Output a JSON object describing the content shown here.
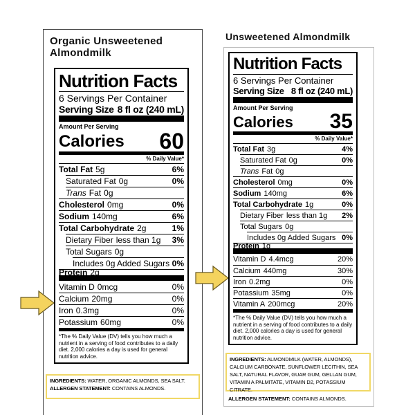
{
  "left": {
    "product": "Organic Unsweetened Almondmilk",
    "label": {
      "title": "Nutrition Facts",
      "servings": "6 Servings Per Container",
      "serving_size_label": "Serving Size",
      "serving_size": "8 fl oz (240 mL)",
      "amount_per_serving": "Amount Per Serving",
      "calories_label": "Calories",
      "calories": 60,
      "dv_header": "% Daily Value*",
      "nutrients": [
        {
          "name": "Total Fat",
          "amount": "5g",
          "dv": "6%",
          "bold": true,
          "indent": 0
        },
        {
          "name": "Saturated Fat",
          "amount": "0g",
          "dv": "0%",
          "bold": false,
          "indent": 1
        },
        {
          "name_italic": "Trans",
          "name": "Fat",
          "amount": "0g",
          "bold": false,
          "indent": 1
        },
        {
          "name": "Cholesterol",
          "amount": "0mg",
          "dv": "0%",
          "bold": true,
          "indent": 0
        },
        {
          "name": "Sodium",
          "amount": "140mg",
          "dv": "6%",
          "bold": true,
          "indent": 0
        },
        {
          "name": "Total Carbohydrate",
          "amount": "2g",
          "dv": "1%",
          "bold": true,
          "indent": 0
        },
        {
          "name": "Dietary Fiber",
          "amount": "less than 1g",
          "dv": "3%",
          "bold": false,
          "indent": 1
        },
        {
          "name": "Total Sugars",
          "amount": "0g",
          "bold": false,
          "indent": 1
        },
        {
          "name": "Includes 0g Added Sugars",
          "dv": "0%",
          "bold": false,
          "indent": 2
        },
        {
          "name": "Protein",
          "amount": "2g",
          "bold": true,
          "indent": 0
        }
      ],
      "vitamins": [
        {
          "name": "Vitamin D",
          "amount": "0mcg",
          "dv": "0%"
        },
        {
          "name": "Calcium",
          "amount": "20mg",
          "dv": "0%"
        },
        {
          "name": "Iron",
          "amount": "0.3mg",
          "dv": "0%"
        },
        {
          "name": "Potassium",
          "amount": "60mg",
          "dv": "0%"
        }
      ],
      "footnote": "*The % Daily Value (DV) tells you how much a nutrient in a serving of food contributes to a daily diet. 2,000 calories a day is used for general nutrition advice."
    },
    "ingredients_label": "INGREDIENTS:",
    "ingredients": "WATER, ORGANIC ALMONDS, SEA SALT.",
    "allergen_label": "ALLERGEN STATEMENT:",
    "allergen": "CONTAINS ALMONDS."
  },
  "right": {
    "product": "Unsweetened Almondmilk",
    "label": {
      "title": "Nutrition Facts",
      "servings": "6 Servings Per Container",
      "serving_size_label": "Serving Size",
      "serving_size": "8 fl oz (240 mL)",
      "amount_per_serving": "Amount Per Serving",
      "calories_label": "Calories",
      "calories": 35,
      "dv_header": "% Daily Value*",
      "nutrients": [
        {
          "name": "Total Fat",
          "amount": "3g",
          "dv": "4%",
          "bold": true,
          "indent": 0
        },
        {
          "name": "Saturated Fat",
          "amount": "0g",
          "dv": "0%",
          "bold": false,
          "indent": 1
        },
        {
          "name_italic": "Trans",
          "name": "Fat",
          "amount": "0g",
          "bold": false,
          "indent": 1
        },
        {
          "name": "Cholesterol",
          "amount": "0mg",
          "dv": "0%",
          "bold": true,
          "indent": 0
        },
        {
          "name": "Sodium",
          "amount": "140mg",
          "dv": "6%",
          "bold": true,
          "indent": 0
        },
        {
          "name": "Total Carbohydrate",
          "amount": "1g",
          "dv": "0%",
          "bold": true,
          "indent": 0
        },
        {
          "name": "Dietary Fiber",
          "amount": "less than 1g",
          "dv": "2%",
          "bold": false,
          "indent": 1
        },
        {
          "name": "Total Sugars",
          "amount": "0g",
          "bold": false,
          "indent": 1
        },
        {
          "name": "Includes 0g Added Sugars",
          "dv": "0%",
          "bold": false,
          "indent": 2
        },
        {
          "name": "Protein",
          "amount": "1g",
          "bold": true,
          "indent": 0
        }
      ],
      "vitamins": [
        {
          "name": "Vitamin D",
          "amount": "4.4mcg",
          "dv": "20%"
        },
        {
          "name": "Calcium",
          "amount": "440mg",
          "dv": "30%"
        },
        {
          "name": "Iron",
          "amount": "0.2mg",
          "dv": "0%"
        },
        {
          "name": "Potassium",
          "amount": "35mg",
          "dv": "0%"
        },
        {
          "name": "Vitamin A",
          "amount": "200mcg",
          "dv": "20%"
        }
      ],
      "footnote": "*The % Daily Value (DV) tells you how much a nutrient in a serving of food contributes to a daily diet. 2,000 calories a day is used for general nutrition advice."
    },
    "ingredients_label": "INGREDIENTS:",
    "ingredients": "ALMONDMILK (WATER, ALMONDS), CALCIUM CARBONATE, SUNFLOWER LECITHIN, SEA SALT, NATURAL FLAVOR, GUAR GUM, GELLAN GUM, VITAMIN A PALMITATE, VITAMIN D2, POTASSIUM CITRATE.",
    "allergen_label": "ALLERGEN STATEMENT:",
    "allergen": "CONTAINS ALMONDS."
  }
}
